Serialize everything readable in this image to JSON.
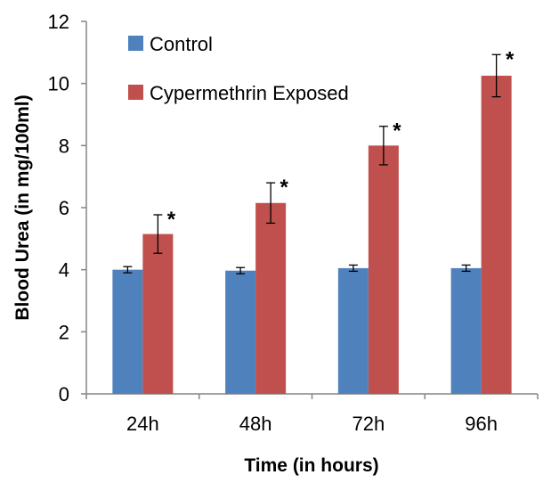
{
  "chart_data": {
    "type": "bar",
    "title": "",
    "xlabel": "Time (in hours)",
    "ylabel": "Blood Urea (in mg/100ml)",
    "categories": [
      "24h",
      "48h",
      "72h",
      "96h"
    ],
    "ylim": [
      0,
      12
    ],
    "yticks": [
      0,
      2,
      4,
      6,
      8,
      10,
      12
    ],
    "grid": false,
    "legend_position": "top-left",
    "series": [
      {
        "name": "Control",
        "color": "#4F81BD",
        "values": [
          4.0,
          3.97,
          4.05,
          4.05
        ],
        "errors": [
          0.1,
          0.1,
          0.1,
          0.1
        ]
      },
      {
        "name": "Cypermethrin Exposed",
        "color": "#C0504D",
        "values": [
          5.15,
          6.15,
          8.0,
          10.25
        ],
        "errors": [
          0.62,
          0.65,
          0.62,
          0.68
        ]
      }
    ],
    "annotations": [
      {
        "series": 1,
        "category": 0,
        "text": "*"
      },
      {
        "series": 1,
        "category": 1,
        "text": "*"
      },
      {
        "series": 1,
        "category": 2,
        "text": "*"
      },
      {
        "series": 1,
        "category": 3,
        "text": "*"
      }
    ]
  }
}
